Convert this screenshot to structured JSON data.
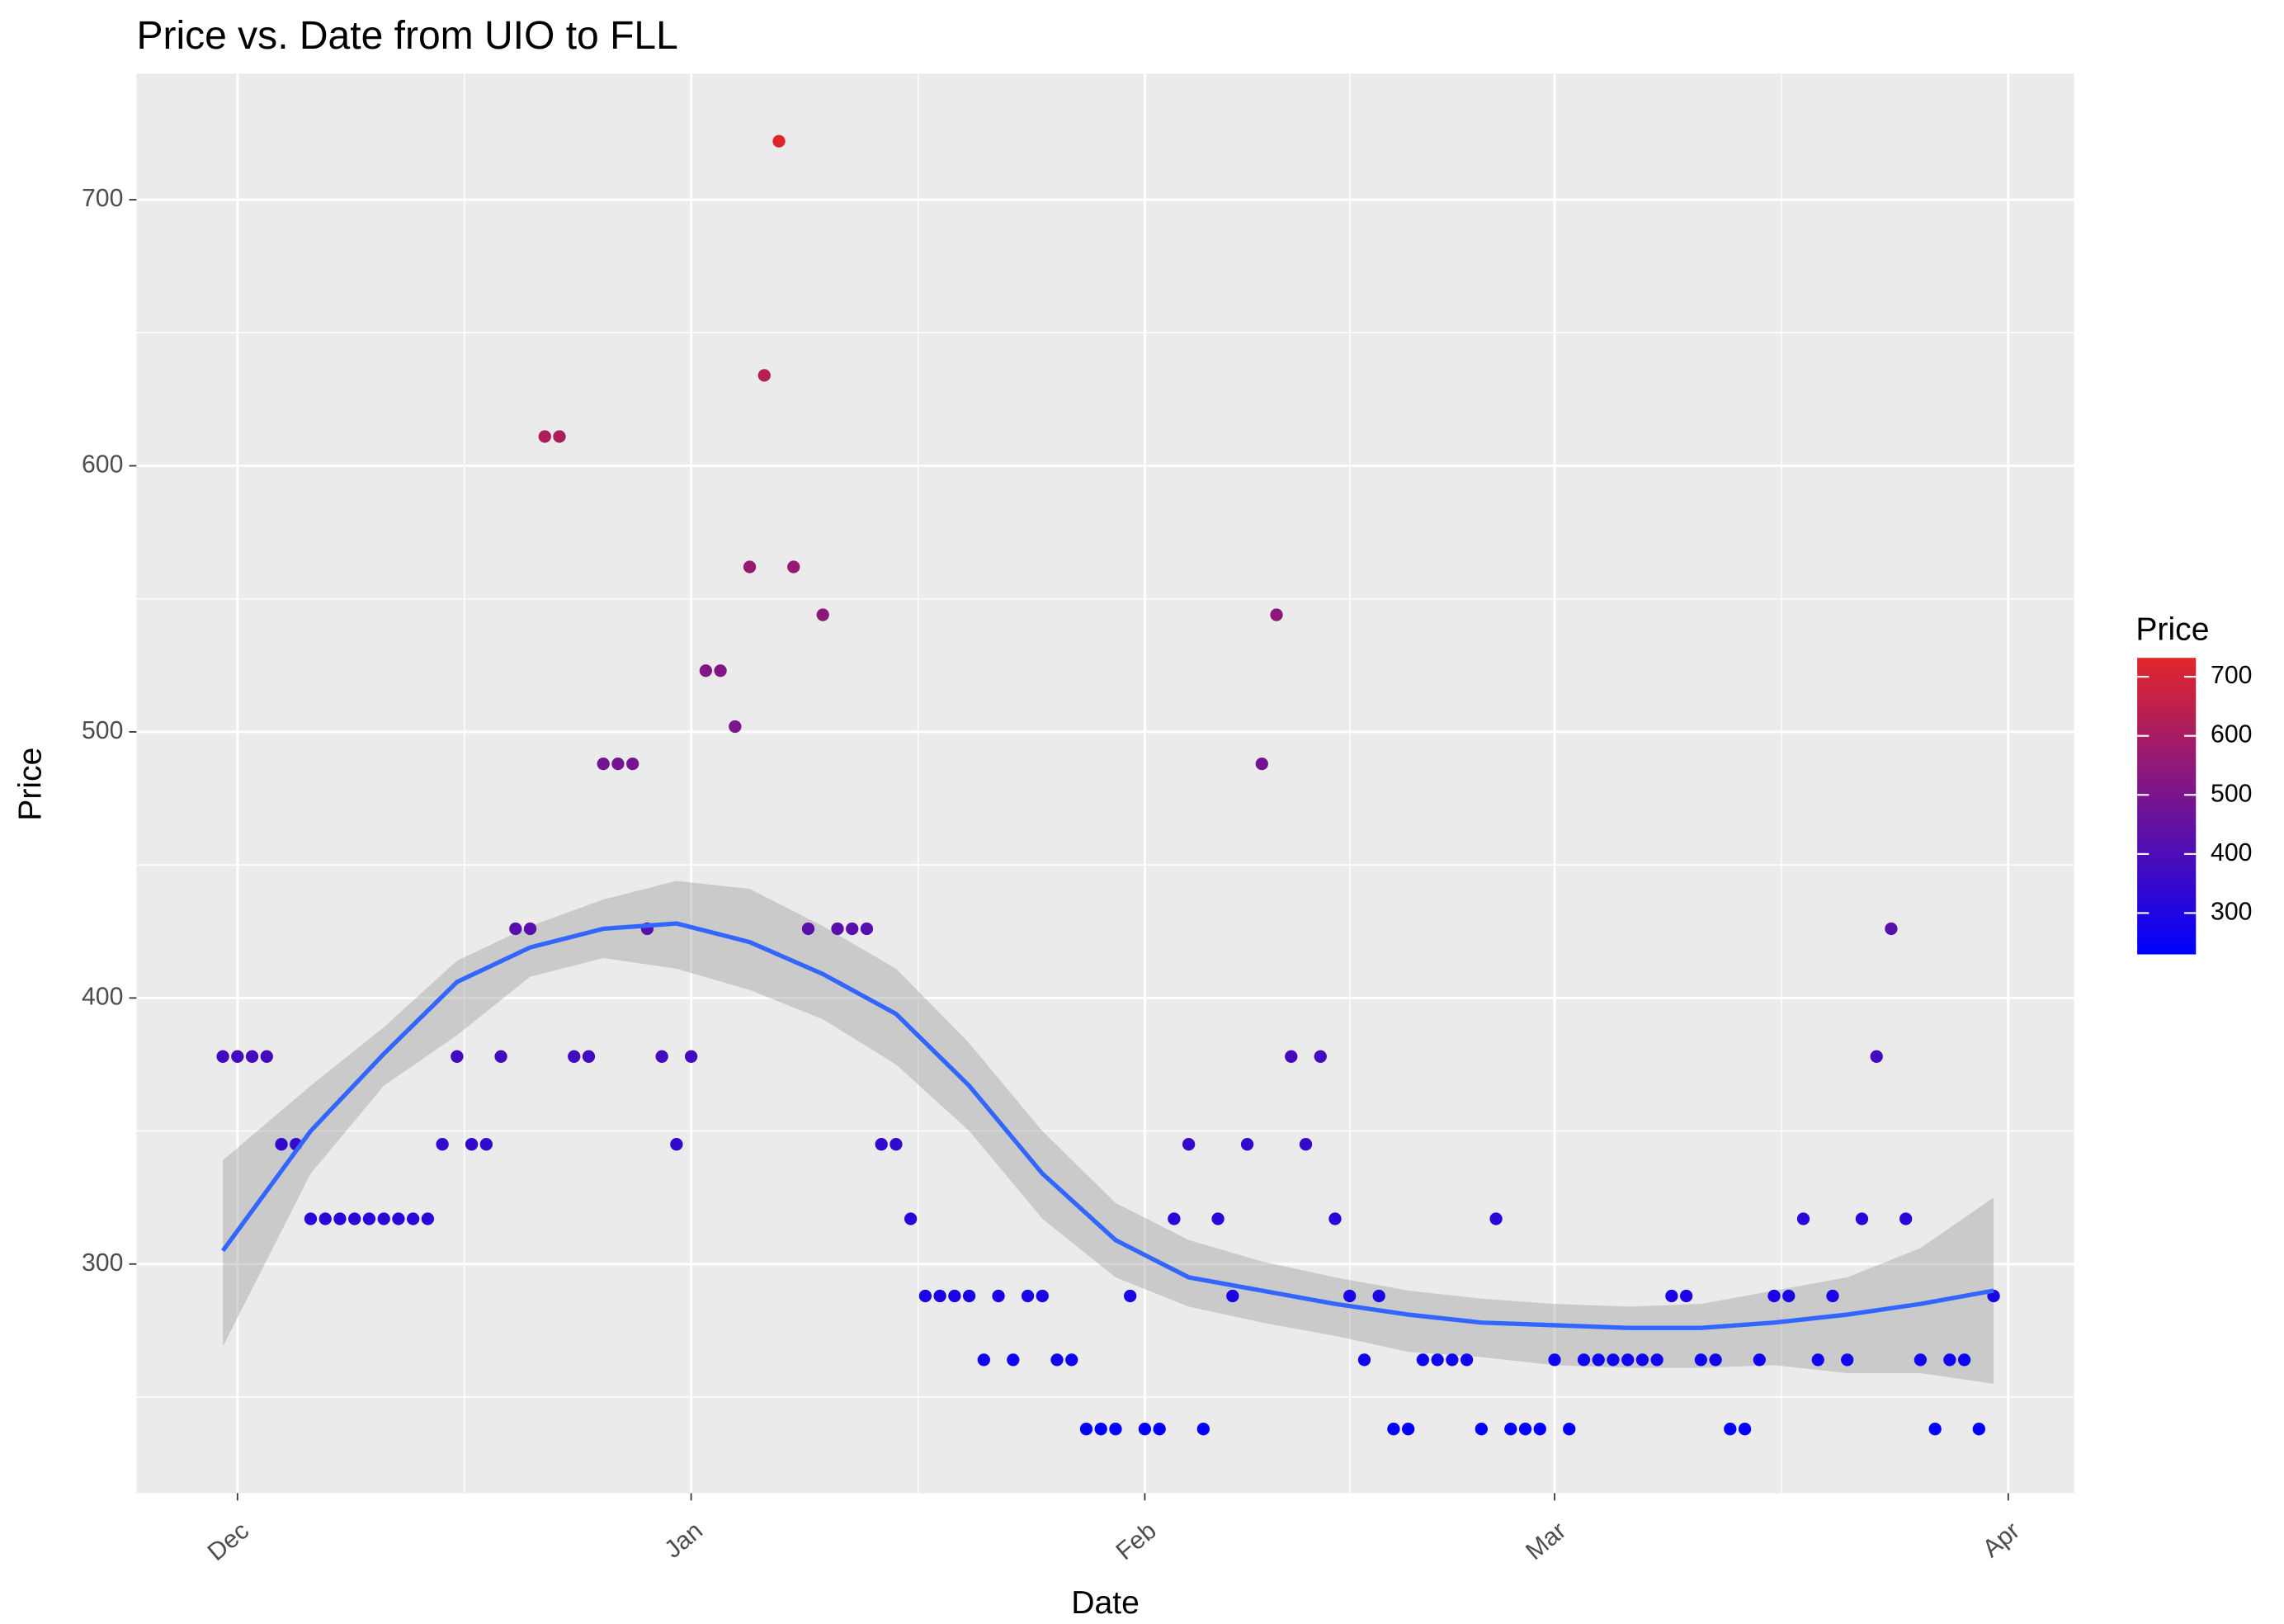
{
  "chart_data": {
    "type": "scatter",
    "title": "Price vs. Date from UIO to FLL",
    "x_label": "Date",
    "y_label": "Price",
    "xlim": [
      -6.9,
      125.5
    ],
    "ylim": [
      213.9,
      747.4
    ],
    "xticks": [
      {
        "value": 0,
        "label": "Dec"
      },
      {
        "value": 31,
        "label": "Jan"
      },
      {
        "value": 62,
        "label": "Feb"
      },
      {
        "value": 90,
        "label": "Mar"
      },
      {
        "value": 121,
        "label": "Apr"
      }
    ],
    "xminor": [
      15.5,
      46.5,
      76,
      105.5
    ],
    "yticks": [
      300,
      400,
      500,
      600,
      700
    ],
    "yminor": [
      250,
      350,
      450,
      550,
      650
    ],
    "grid": true,
    "legend": {
      "title": "Price",
      "position": "right",
      "ticks": [
        300,
        400,
        500,
        600,
        700
      ],
      "colorlim": [
        230,
        732
      ],
      "low_color": "#0000ff",
      "high_color": "#e3262a"
    },
    "points": {
      "x": [
        -1,
        0,
        1,
        2,
        3,
        4,
        5,
        6,
        7,
        8,
        9,
        10,
        11,
        12,
        13,
        14,
        15,
        16,
        17,
        18,
        19,
        20,
        21,
        22,
        23,
        24,
        25,
        26,
        27,
        28,
        29,
        30,
        31,
        32,
        33,
        34,
        35,
        36,
        37,
        38,
        39,
        40,
        41,
        42,
        43,
        44,
        45,
        46,
        47,
        48,
        49,
        50,
        51,
        52,
        53,
        54,
        55,
        56,
        57,
        58,
        59,
        60,
        61,
        62,
        63,
        64,
        65,
        66,
        67,
        68,
        69,
        70,
        71,
        72,
        73,
        74,
        75,
        76,
        77,
        78,
        79,
        80,
        81,
        82,
        83,
        84,
        85,
        86,
        87,
        88,
        89,
        90,
        91,
        92,
        93,
        94,
        95,
        96,
        97,
        98,
        99,
        100,
        101,
        102,
        103,
        104,
        105,
        106,
        107,
        108,
        109,
        110,
        111,
        112,
        113,
        114,
        115,
        116,
        117,
        118,
        119,
        120
      ],
      "values": [
        378,
        378,
        378,
        378,
        345,
        345,
        317,
        317,
        317,
        317,
        317,
        317,
        317,
        317,
        317,
        345,
        378,
        345,
        345,
        378,
        426,
        426,
        611,
        611,
        378,
        378,
        488,
        488,
        488,
        426,
        378,
        345,
        378,
        523,
        523,
        502,
        562,
        634,
        722,
        562,
        426,
        544,
        426,
        426,
        426,
        345,
        345,
        317,
        288,
        288,
        288,
        288,
        264,
        288,
        264,
        288,
        288,
        264,
        264,
        238,
        238,
        238,
        288,
        238,
        238,
        317,
        345,
        238,
        317,
        288,
        345,
        488,
        544,
        378,
        345,
        378,
        317,
        288,
        264,
        288,
        238,
        238,
        264,
        264,
        264,
        264,
        238,
        317,
        238,
        238,
        238,
        264,
        238,
        264,
        264,
        264,
        264,
        264,
        264,
        288,
        288,
        264,
        264,
        238,
        238,
        264,
        288,
        288,
        317,
        264,
        288,
        264,
        317,
        378,
        426,
        317,
        264,
        238,
        264,
        264,
        238,
        288
      ]
    },
    "smooth": {
      "color": "#3366ff",
      "x": [
        -1,
        5,
        10,
        15,
        20,
        25,
        30,
        35,
        40,
        45,
        50,
        55,
        60,
        65,
        70,
        75,
        80,
        85,
        90,
        95,
        100,
        105,
        110,
        115,
        120
      ],
      "values": [
        305,
        350,
        379,
        406,
        419,
        426,
        428,
        421,
        409,
        394,
        367,
        334,
        309,
        295,
        290,
        285,
        281,
        278,
        277,
        276,
        276,
        278,
        281,
        285,
        290
      ],
      "lower": [
        269,
        334,
        367,
        386,
        408,
        415,
        411,
        403,
        392,
        375,
        350,
        317,
        295,
        284,
        278,
        273,
        267,
        265,
        262,
        261,
        261,
        262,
        259,
        259,
        255
      ],
      "upper": [
        339,
        367,
        389,
        414,
        427,
        437,
        444,
        441,
        427,
        411,
        383,
        350,
        323,
        309,
        301,
        295,
        290,
        287,
        285,
        284,
        285,
        290,
        295,
        306,
        325
      ]
    }
  }
}
